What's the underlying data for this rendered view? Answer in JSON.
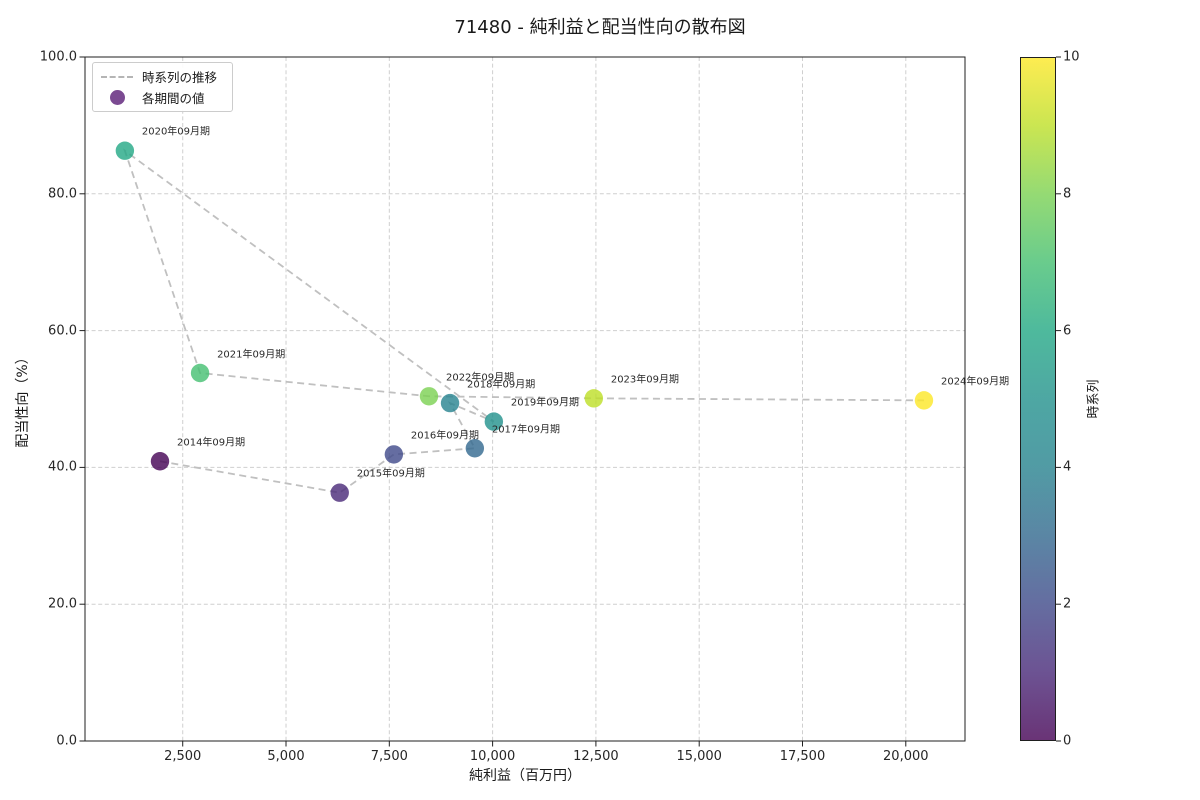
{
  "chart_data": {
    "type": "scatter",
    "title": "71480 - 純利益と配当性向の散布図",
    "xlabel": "純利益（百万円）",
    "ylabel": "配当性向（%）",
    "colorbar_label": "時系列",
    "legend": {
      "line_label": "時系列の推移",
      "marker_label": "各期間の値",
      "marker_color": "#7b4a92",
      "position": "upper left"
    },
    "grid": "dashed",
    "marker_alpha": 0.8,
    "xlim": [
      135,
      21433
    ],
    "ylim": [
      0,
      100
    ],
    "xticks": [
      2500,
      5000,
      7500,
      10000,
      12500,
      15000,
      17500,
      20000
    ],
    "xtick_labels": [
      "2,500",
      "5,000",
      "7,500",
      "10,000",
      "12,500",
      "15,000",
      "17,500",
      "20,000"
    ],
    "yticks": [
      0,
      20,
      40,
      60,
      80,
      100
    ],
    "ytick_labels": [
      "0.0",
      "20.0",
      "40.0",
      "60.0",
      "80.0",
      "100.0"
    ],
    "colorbar": {
      "range": [
        0,
        10
      ],
      "ticks": [
        0,
        2,
        4,
        6,
        8,
        10
      ],
      "tick_labels": [
        "0",
        "2",
        "4",
        "6",
        "8",
        "10"
      ],
      "colormap": "viridis",
      "colors": [
        "#440154",
        "#482878",
        "#3e4989",
        "#31688e",
        "#26828e",
        "#21918c",
        "#22a884",
        "#44bf70",
        "#7ad151",
        "#bddf26",
        "#fde725"
      ]
    },
    "points": [
      {
        "period": "2014年09月期",
        "net_profit": 1950,
        "payout_ratio": 40.9,
        "t": 0
      },
      {
        "period": "2015年09月期",
        "net_profit": 6300,
        "payout_ratio": 36.3,
        "t": 1
      },
      {
        "period": "2016年09月期",
        "net_profit": 7610,
        "payout_ratio": 41.9,
        "t": 2
      },
      {
        "period": "2017年09月期",
        "net_profit": 9570,
        "payout_ratio": 42.8,
        "t": 3
      },
      {
        "period": "2018年09月期",
        "net_profit": 8970,
        "payout_ratio": 49.4,
        "t": 4
      },
      {
        "period": "2019年09月期",
        "net_profit": 10030,
        "payout_ratio": 46.7,
        "t": 5
      },
      {
        "period": "2020年09月期",
        "net_profit": 1100,
        "payout_ratio": 86.3,
        "t": 6
      },
      {
        "period": "2021年09月期",
        "net_profit": 2920,
        "payout_ratio": 53.8,
        "t": 7
      },
      {
        "period": "2022年09月期",
        "net_profit": 8460,
        "payout_ratio": 50.4,
        "t": 8
      },
      {
        "period": "2023年09月期",
        "net_profit": 12450,
        "payout_ratio": 50.1,
        "t": 9
      },
      {
        "period": "2024年09月期",
        "net_profit": 20440,
        "payout_ratio": 49.8,
        "t": 10
      }
    ]
  }
}
